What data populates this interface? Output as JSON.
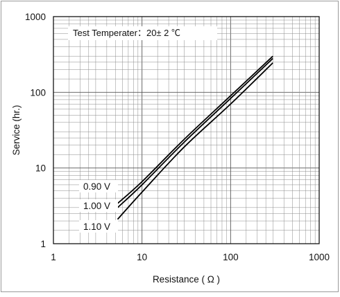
{
  "chart_data": {
    "type": "line",
    "xscale": "log",
    "yscale": "log",
    "xlim": [
      1,
      1000
    ],
    "ylim": [
      1,
      1000
    ],
    "grid": true,
    "xlabel": "Resistance ( Ω )",
    "ylabel": "Service (hr.)",
    "annotation": "Test Temperater：20± 2 ℃",
    "xticks": [
      "1",
      "10",
      "100",
      "1000"
    ],
    "yticks": [
      "1",
      "10",
      "100",
      "1000"
    ],
    "series": [
      {
        "name": "0.90 V",
        "x": [
          5.3,
          10,
          30,
          100,
          300
        ],
        "y": [
          3.4,
          6.6,
          24,
          90,
          300
        ]
      },
      {
        "name": "1.00 V",
        "x": [
          5.3,
          10,
          30,
          100,
          300
        ],
        "y": [
          3.0,
          6.0,
          22,
          83,
          280
        ]
      },
      {
        "name": "1.10 V",
        "x": [
          5.3,
          10,
          30,
          100,
          300
        ],
        "y": [
          2.1,
          4.8,
          19,
          70,
          245
        ]
      }
    ],
    "line_color": "#000000",
    "grid_color": "#8a8a8a"
  }
}
